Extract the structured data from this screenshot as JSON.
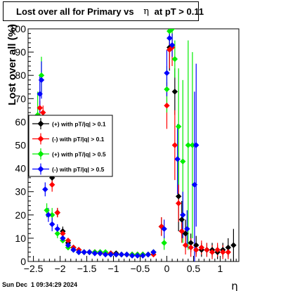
{
  "title_parts": {
    "before": "Lost over all for Primary vs ",
    "symbol": "η",
    "after": " at pT > 0.11"
  },
  "footer": {
    "timestamp": "Sun Dec  1 09:34:29 2024"
  },
  "chart_data": {
    "type": "scatter",
    "title": "Lost over all for Primary vs η at pT > 0.11",
    "xlabel": "η",
    "ylabel": "Lost over all (%)",
    "xlim": [
      -2.6,
      1.35
    ],
    "ylim": [
      0,
      100
    ],
    "x_ticks": [
      -2.5,
      -2,
      -1.5,
      -1,
      -0.5,
      0,
      0.5,
      1
    ],
    "x_tick_labels": [
      "−2.5",
      "−2",
      "−1.5",
      "−1",
      "−0.5",
      "0",
      "0.5",
      "1"
    ],
    "y_ticks": [
      0,
      10,
      20,
      30,
      40,
      50,
      60,
      70,
      80,
      90,
      100
    ],
    "y_tick_labels": [
      "0",
      "10",
      "20",
      "30",
      "40",
      "50",
      "60",
      "70",
      "80",
      "90",
      "100"
    ],
    "grid": false,
    "legend_position": "left-middle",
    "series": [
      {
        "name": "(+) with pT/|q| > 0.1",
        "color": "#000000",
        "points": [
          [
            -2.35,
            60
          ],
          [
            -2.25,
            50
          ],
          [
            -2.15,
            36
          ],
          [
            -2.05,
            21
          ],
          [
            -1.95,
            13
          ],
          [
            -1.85,
            8
          ],
          [
            -1.75,
            6
          ],
          [
            -1.65,
            5
          ],
          [
            -1.55,
            4
          ],
          [
            -1.45,
            4
          ],
          [
            -1.35,
            4
          ],
          [
            -1.25,
            4
          ],
          [
            -1.15,
            3.5
          ],
          [
            -1.05,
            3.5
          ],
          [
            -0.95,
            3.5
          ],
          [
            -0.85,
            3
          ],
          [
            -0.75,
            3
          ],
          [
            -0.65,
            3
          ],
          [
            -0.55,
            3
          ],
          [
            -0.45,
            3
          ],
          [
            -0.35,
            3
          ],
          [
            -0.25,
            4
          ],
          [
            -0.1,
            15
          ],
          [
            0.05,
            92
          ],
          [
            0.15,
            73
          ],
          [
            0.22,
            28
          ],
          [
            0.28,
            18
          ],
          [
            0.35,
            12
          ],
          [
            0.45,
            8
          ],
          [
            0.55,
            7
          ],
          [
            0.65,
            5
          ],
          [
            0.75,
            5
          ],
          [
            0.85,
            5
          ],
          [
            0.95,
            4
          ],
          [
            1.05,
            5
          ],
          [
            1.15,
            6
          ],
          [
            1.25,
            7
          ]
        ],
        "errors": [
          3,
          3,
          3,
          2,
          2,
          1,
          1,
          1,
          1,
          1,
          1,
          1,
          1,
          1,
          1,
          1,
          1,
          1,
          1,
          1,
          1,
          1,
          4,
          10,
          10,
          15,
          8,
          6,
          4,
          4,
          3,
          3,
          3,
          3,
          3,
          4,
          7
        ]
      },
      {
        "name": "(-) with pT/|q| > 0.1",
        "color": "#ff0000",
        "points": [
          [
            -2.38,
            66
          ],
          [
            -2.32,
            64
          ],
          [
            -2.25,
            56
          ],
          [
            -2.15,
            33
          ],
          [
            -2.05,
            21
          ],
          [
            -1.95,
            12
          ],
          [
            -1.85,
            9
          ],
          [
            -1.75,
            6
          ],
          [
            -1.65,
            5
          ],
          [
            -1.55,
            4
          ],
          [
            -1.45,
            4
          ],
          [
            -1.35,
            4
          ],
          [
            -1.25,
            3.5
          ],
          [
            -1.15,
            3.5
          ],
          [
            -1.05,
            3.5
          ],
          [
            -0.95,
            3
          ],
          [
            -0.85,
            3
          ],
          [
            -0.75,
            3
          ],
          [
            -0.65,
            3
          ],
          [
            -0.55,
            3
          ],
          [
            -0.45,
            3
          ],
          [
            -0.35,
            3
          ],
          [
            -0.25,
            3
          ],
          [
            -0.1,
            15
          ],
          [
            0.0,
            67
          ],
          [
            0.05,
            91
          ],
          [
            0.1,
            92
          ],
          [
            0.15,
            50
          ],
          [
            0.22,
            25
          ],
          [
            0.28,
            13
          ],
          [
            0.35,
            7
          ],
          [
            0.45,
            6
          ],
          [
            0.55,
            5
          ],
          [
            0.65,
            6
          ],
          [
            0.75,
            5
          ],
          [
            0.85,
            4
          ],
          [
            0.95,
            5
          ],
          [
            1.05,
            4
          ],
          [
            1.15,
            4
          ]
        ],
        "errors": [
          3,
          3,
          3,
          3,
          2,
          1,
          1,
          1,
          1,
          1,
          1,
          1,
          1,
          1,
          1,
          1,
          1,
          1,
          1,
          1,
          1,
          1,
          1,
          4,
          10,
          8,
          8,
          15,
          8,
          5,
          4,
          4,
          3,
          3,
          3,
          3,
          3,
          3,
          3
        ]
      },
      {
        "name": "(+) with pT/|q| > 0.5",
        "color": "#00ee00",
        "points": [
          [
            -2.42,
            63
          ],
          [
            -2.35,
            80
          ],
          [
            -2.25,
            22
          ],
          [
            -2.15,
            20
          ],
          [
            -2.05,
            12
          ],
          [
            -1.95,
            9
          ],
          [
            -1.85,
            6
          ],
          [
            -1.75,
            5
          ],
          [
            -1.65,
            4
          ],
          [
            -1.55,
            4
          ],
          [
            -1.45,
            4
          ],
          [
            -1.35,
            4
          ],
          [
            -1.25,
            4
          ],
          [
            -1.15,
            4
          ],
          [
            -1.05,
            3
          ],
          [
            -0.95,
            3
          ],
          [
            -0.85,
            3
          ],
          [
            -0.75,
            3
          ],
          [
            -0.65,
            3
          ],
          [
            -0.55,
            3
          ],
          [
            -0.45,
            3
          ],
          [
            -0.35,
            3
          ],
          [
            -0.25,
            4
          ],
          [
            -0.05,
            8
          ],
          [
            0.0,
            74
          ],
          [
            0.05,
            99
          ],
          [
            0.1,
            100
          ],
          [
            0.15,
            87
          ],
          [
            0.22,
            58
          ],
          [
            0.3,
            43
          ],
          [
            0.4,
            50
          ],
          [
            0.48,
            50
          ]
        ],
        "errors": [
          10,
          8,
          3,
          3,
          2,
          1,
          1,
          1,
          1,
          1,
          1,
          1,
          1,
          1,
          1,
          1,
          1,
          1,
          1,
          1,
          1,
          1,
          1,
          3,
          10,
          5,
          5,
          8,
          25,
          35,
          45,
          40
        ]
      },
      {
        "name": "(-) with pT/|q| > 0.5",
        "color": "#0000ff",
        "points": [
          [
            -2.38,
            72
          ],
          [
            -2.35,
            78
          ],
          [
            -2.28,
            31
          ],
          [
            -2.22,
            20
          ],
          [
            -2.15,
            16
          ],
          [
            -2.05,
            14
          ],
          [
            -1.95,
            10
          ],
          [
            -1.85,
            7
          ],
          [
            -1.75,
            5
          ],
          [
            -1.65,
            4
          ],
          [
            -1.55,
            4
          ],
          [
            -1.45,
            4
          ],
          [
            -1.35,
            3.5
          ],
          [
            -1.25,
            3.5
          ],
          [
            -1.15,
            3
          ],
          [
            -1.05,
            3
          ],
          [
            -0.95,
            3
          ],
          [
            -0.85,
            3
          ],
          [
            -0.75,
            3
          ],
          [
            -0.65,
            2.5
          ],
          [
            -0.55,
            2.5
          ],
          [
            -0.45,
            2.5
          ],
          [
            -0.35,
            3
          ],
          [
            -0.25,
            4
          ],
          [
            -0.05,
            14
          ],
          [
            0.0,
            81
          ],
          [
            0.05,
            96
          ],
          [
            0.1,
            93
          ],
          [
            0.2,
            44
          ],
          [
            0.3,
            20
          ],
          [
            0.38,
            14
          ],
          [
            0.52,
            33
          ],
          [
            0.55,
            50
          ]
        ],
        "errors": [
          8,
          8,
          3,
          3,
          3,
          2,
          1,
          1,
          1,
          1,
          1,
          1,
          1,
          1,
          1,
          1,
          1,
          1,
          1,
          1,
          1,
          1,
          1,
          1,
          4,
          10,
          5,
          5,
          15,
          10,
          8,
          40,
          35
        ]
      }
    ]
  }
}
